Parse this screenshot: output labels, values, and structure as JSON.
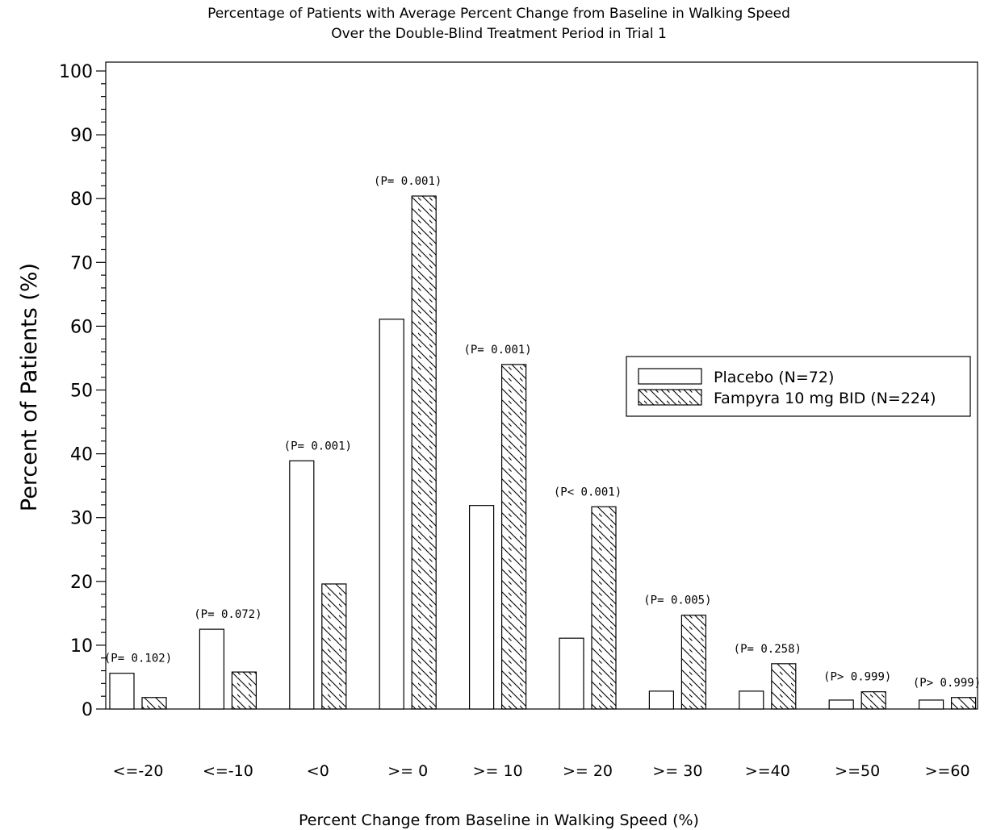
{
  "chart_data": {
    "type": "bar",
    "title": "Percentage of Patients with Average Percent Change from Baseline in Walking Speed",
    "subtitle": "Over the Double-Blind Treatment Period in Trial 1",
    "xlabel": "Percent Change from Baseline in Walking Speed (%)",
    "ylabel": "Percent of Patients (%)",
    "ylim": [
      0,
      100
    ],
    "yticks": [
      0,
      10,
      20,
      30,
      40,
      50,
      60,
      70,
      80,
      90,
      100
    ],
    "categories": [
      "<=-20",
      "<=-10",
      "<0",
      ">= 0",
      ">= 10",
      ">= 20",
      ">= 30",
      ">=40",
      ">=50",
      ">=60"
    ],
    "series": [
      {
        "name": "Placebo (N=72)",
        "pattern": "open",
        "values": [
          5.6,
          12.5,
          38.9,
          61.1,
          31.9,
          11.1,
          2.8,
          2.8,
          1.4,
          1.4
        ]
      },
      {
        "name": "Fampyra 10 mg BID (N=224)",
        "pattern": "hatched",
        "values": [
          1.8,
          5.8,
          19.6,
          80.4,
          54.0,
          31.7,
          14.7,
          7.1,
          2.7,
          1.8
        ]
      }
    ],
    "annotations": [
      "(P= 0.102)",
      "(P= 0.072)",
      "(P= 0.001)",
      "(P= 0.001)",
      "(P= 0.001)",
      "(P< 0.001)",
      "(P= 0.005)",
      "(P= 0.258)",
      "(P> 0.999)",
      "(P> 0.999)"
    ],
    "legend_position": "right",
    "grid": false,
    "colors": {
      "line": "#000000",
      "background": "#ffffff"
    }
  }
}
